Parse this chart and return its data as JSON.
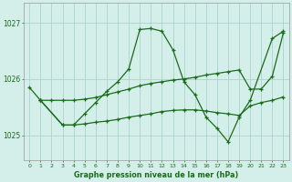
{
  "bg_color": "#d4eeea",
  "grid_color": "#aad4cc",
  "line_color": "#1a6b1a",
  "title": "Graphe pression niveau de la mer (hPa)",
  "yticks": [
    1025,
    1026,
    1027
  ],
  "xlim": [
    -0.5,
    23.5
  ],
  "ylim": [
    1024.55,
    1027.35
  ],
  "series1_x": [
    0,
    1,
    3,
    4,
    5,
    6,
    7,
    8,
    9,
    10,
    11,
    12,
    13,
    14,
    15,
    16,
    17,
    18,
    19,
    20,
    22,
    23
  ],
  "series1_y": [
    1025.85,
    1025.62,
    1025.18,
    1025.18,
    1025.38,
    1025.58,
    1025.78,
    1025.95,
    1026.18,
    1026.88,
    1026.9,
    1026.85,
    1026.52,
    1025.95,
    1025.72,
    1025.32,
    1025.12,
    1024.88,
    1025.32,
    1025.62,
    1026.72,
    1026.85
  ],
  "series2_x": [
    1,
    2,
    3,
    4,
    5,
    6,
    7,
    8,
    9,
    10,
    11,
    12,
    13,
    14,
    15,
    16,
    17,
    18,
    19,
    20,
    21,
    22,
    23
  ],
  "series2_y": [
    1025.62,
    1025.62,
    1025.62,
    1025.62,
    1025.64,
    1025.67,
    1025.72,
    1025.77,
    1025.82,
    1025.88,
    1025.92,
    1025.95,
    1025.98,
    1026.0,
    1026.03,
    1026.07,
    1026.1,
    1026.13,
    1026.16,
    1025.82,
    1025.82,
    1026.05,
    1026.82
  ],
  "series3_x": [
    1,
    3,
    4,
    5,
    6,
    7,
    8,
    9,
    10,
    11,
    12,
    13,
    14,
    15,
    16,
    17,
    18,
    19,
    20,
    21,
    22,
    23
  ],
  "series3_y": [
    1025.62,
    1025.18,
    1025.18,
    1025.2,
    1025.23,
    1025.25,
    1025.28,
    1025.32,
    1025.35,
    1025.38,
    1025.42,
    1025.44,
    1025.45,
    1025.45,
    1025.43,
    1025.4,
    1025.38,
    1025.35,
    1025.52,
    1025.58,
    1025.62,
    1025.68
  ]
}
